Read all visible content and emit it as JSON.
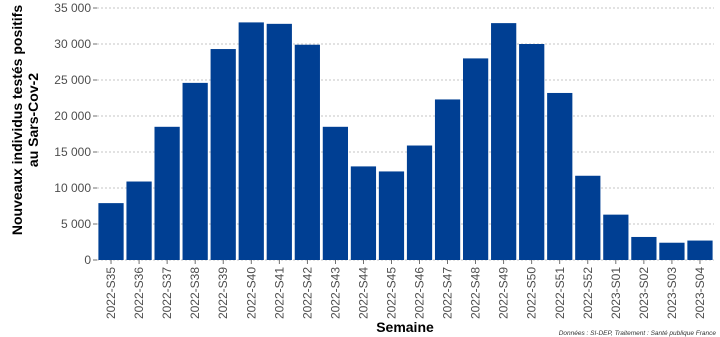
{
  "chart_data": {
    "type": "bar",
    "categories": [
      "2022-S35",
      "2022-S36",
      "2022-S37",
      "2022-S38",
      "2022-S39",
      "2022-S40",
      "2022-S41",
      "2022-S42",
      "2022-S43",
      "2022-S44",
      "2022-S45",
      "2022-S46",
      "2022-S47",
      "2022-S48",
      "2022-S49",
      "2022-S50",
      "2022-S51",
      "2022-S52",
      "2023-S01",
      "2023-S02",
      "2023-S03",
      "2023-S04"
    ],
    "values": [
      7900,
      10900,
      18500,
      24600,
      29300,
      33000,
      32800,
      29900,
      18500,
      13000,
      12300,
      15900,
      22300,
      28000,
      32900,
      30000,
      23200,
      11700,
      6300,
      3200,
      2400,
      2700
    ],
    "xlabel": "Semaine",
    "ylabel_lines": [
      "Nouveaux individus testés positifs",
      "au Sars-Cov-2"
    ],
    "ylim": [
      0,
      35000
    ],
    "yticks": [
      0,
      5000,
      10000,
      15000,
      20000,
      25000,
      30000,
      35000
    ],
    "ytick_labels": [
      "0",
      "5 000",
      "10 000",
      "15 000",
      "20 000",
      "25 000",
      "30 000",
      "35 000"
    ],
    "grid": true,
    "bar_color": "#003f93",
    "caption": "Données : SI-DEP, Traitement : Santé publique France"
  }
}
